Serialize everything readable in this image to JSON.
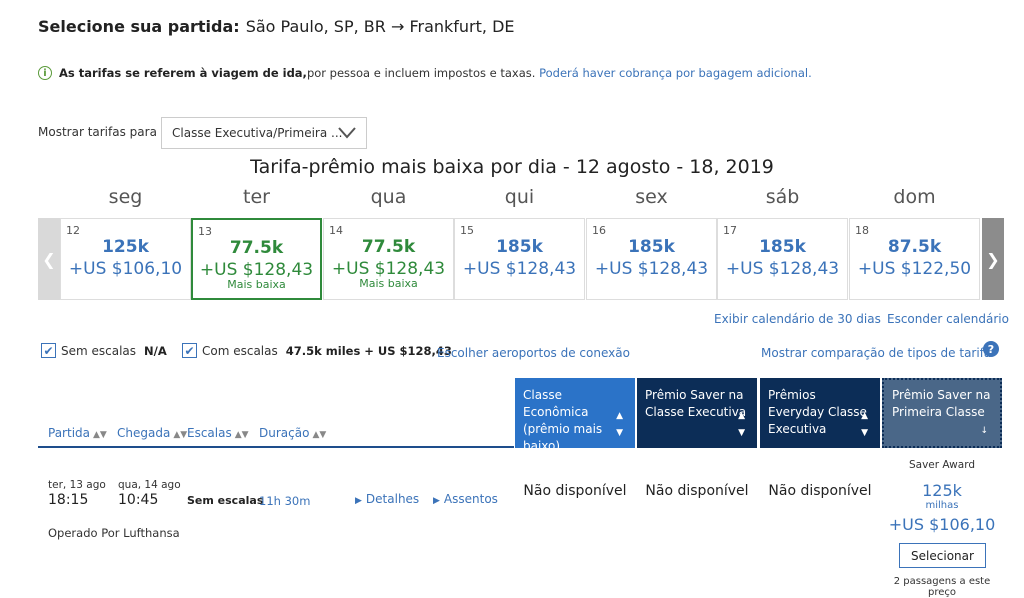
{
  "header": {
    "label": "Selecione sua partida:",
    "route": "São Paulo, SP, BR → Frankfurt, DE"
  },
  "info": {
    "bold": "As tarifas se referem à viagem de ida,",
    "text": " por pessoa e incluem impostos e taxas.",
    "link": "Poderá haver cobrança por bagagem adicional."
  },
  "fare_filter": {
    "label": "Mostrar tarifas para",
    "selected": "Classe Executiva/Primeira ..."
  },
  "calendar": {
    "title": "Tarifa-prêmio mais baixa por dia - 12 agosto - 18, 2019",
    "days": [
      {
        "name": "seg",
        "num": "12",
        "miles": "125k",
        "price": "+US $106,10",
        "note": "",
        "state": "normal"
      },
      {
        "name": "ter",
        "num": "13",
        "miles": "77.5k",
        "price": "+US $128,43",
        "note": "Mais baixa",
        "state": "selected"
      },
      {
        "name": "qua",
        "num": "14",
        "miles": "77.5k",
        "price": "+US $128,43",
        "note": "Mais baixa",
        "state": "lowest"
      },
      {
        "name": "qui",
        "num": "15",
        "miles": "185k",
        "price": "+US $128,43",
        "note": "",
        "state": "normal"
      },
      {
        "name": "sex",
        "num": "16",
        "miles": "185k",
        "price": "+US $128,43",
        "note": "",
        "state": "normal"
      },
      {
        "name": "sáb",
        "num": "17",
        "miles": "185k",
        "price": "+US $128,43",
        "note": "",
        "state": "normal"
      },
      {
        "name": "dom",
        "num": "18",
        "miles": "87.5k",
        "price": "+US $122,50",
        "note": "",
        "state": "normal"
      }
    ],
    "show_30_days": "Exibir calendário de 30 dias",
    "hide_calendar": "Esconder calendário"
  },
  "filters": {
    "nonstop_label": "Sem escalas",
    "nonstop_value": "N/A",
    "connecting_label": "Com escalas",
    "connecting_value": "47.5k miles + US $128,43",
    "choose_airports": "Escolher aeroportos de conexão",
    "compare": "Mostrar comparação de tipos de tarifa",
    "help": "?"
  },
  "columns": {
    "sort": [
      "Partida",
      "Chegada",
      "Escalas",
      "Duração"
    ],
    "fare_types": [
      "Classe Econômica (prêmio mais baixo)",
      "Prêmio Saver na Classe Executiva",
      "Prêmios Everyday Classe Executiva",
      "Prêmio Saver na Primeira Classe"
    ]
  },
  "flight": {
    "dep_date": "ter, 13 ago",
    "dep_time": "18:15",
    "arr_date": "qua, 14 ago",
    "arr_time": "10:45",
    "stops": "Sem escalas",
    "duration": "11h 30m",
    "details": "Detalhes",
    "seats": "Assentos",
    "operated_by": "Operado Por Lufthansa",
    "unavailable": [
      "Não disponível",
      "Não disponível",
      "Não disponível"
    ],
    "award": {
      "label": "Saver Award",
      "miles": "125k",
      "unit": "milhas",
      "price": "+US $106,10",
      "button": "Selecionar",
      "seats_left": "2 passagens a este preço"
    }
  },
  "colors": {
    "link": "#3b73b9",
    "green": "#2f8a3b",
    "economy_header": "#2b73c8",
    "navy_header": "#0c2d57",
    "first_header": "#4a6788"
  }
}
